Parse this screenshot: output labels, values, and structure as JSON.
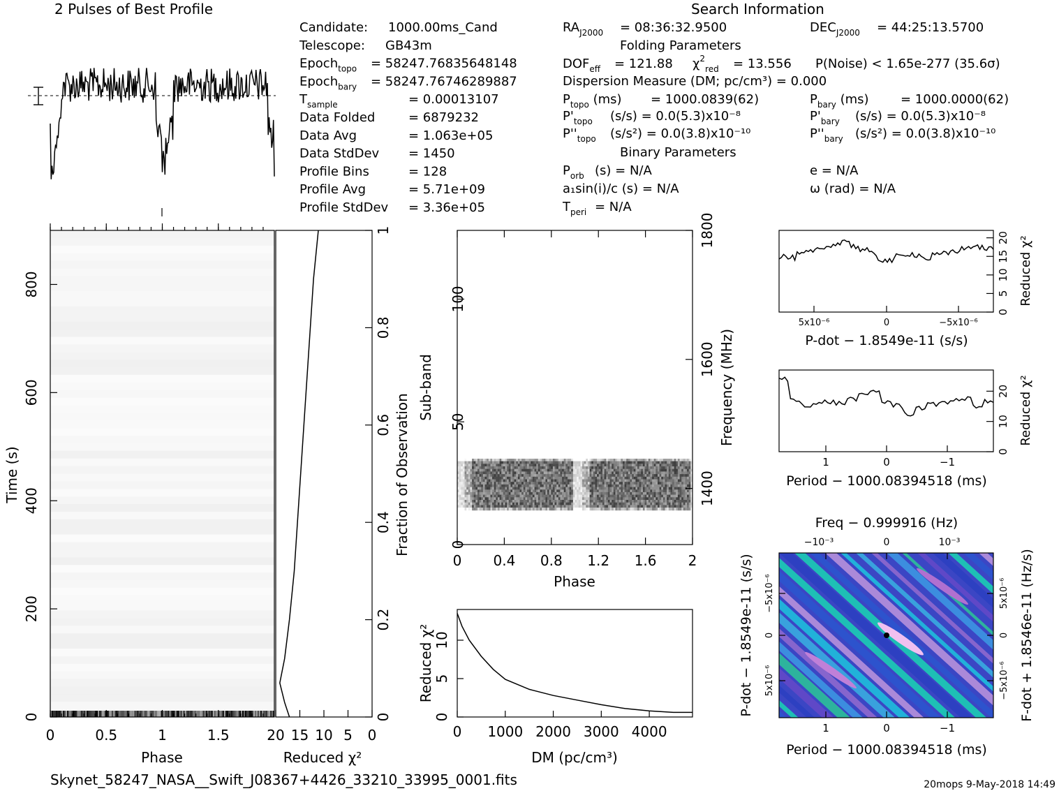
{
  "header": {
    "profile_title": "2 Pulses of Best Profile",
    "search_title": "Search Information"
  },
  "info_left": [
    {
      "label": "Candidate:",
      "value": "1000.00ms_Cand"
    },
    {
      "label": "Telescope:",
      "value": "GB43m"
    },
    {
      "label": "Epoch",
      "sub": "topo",
      "value": "= 58247.76835648148"
    },
    {
      "label": "Epoch",
      "sub": "bary",
      "value": "= 58247.76746289887"
    },
    {
      "label": "T",
      "sub": "sample",
      "value": "= 0.00013107"
    },
    {
      "label": "Data Folded",
      "value": "= 6879232"
    },
    {
      "label": "Data Avg",
      "value": "= 1.063e+05"
    },
    {
      "label": "Data StdDev",
      "value": "= 1450"
    },
    {
      "label": "Profile Bins",
      "value": "= 128"
    },
    {
      "label": "Profile Avg",
      "value": "= 5.71e+09"
    },
    {
      "label": "Profile StdDev",
      "value": "= 3.36e+05"
    }
  ],
  "info_mid": {
    "ra": "= 08:36:32.9500",
    "dec": "= 44:25:13.5700",
    "folding_title": "Folding Parameters",
    "dof": "= 121.88",
    "chi_red": "= 13.556",
    "pnoise": "P(Noise) < 1.65e-277 (35.6σ)",
    "dm_line": "Dispersion Measure (DM; pc/cm³) = 0.000",
    "ptopo": "= 1000.0839(62)",
    "pbary": "= 1000.0000(62)",
    "pdot_topo": "(s/s) = 0.0(5.3)x10⁻⁸",
    "pdot_bary": "(s/s) = 0.0(5.3)x10⁻⁸",
    "pddot_topo": "(s/s²) = 0.0(3.8)x10⁻¹⁰",
    "pddot_bary": "(s/s²) = 0.0(3.8)x10⁻¹⁰",
    "binary_title": "Binary Parameters",
    "porb": "(s) = N/A",
    "a1sini": "a₁sin(i)/c (s) = N/A",
    "tperi": "= N/A",
    "ecc": "e = N/A",
    "omega": "ω (rad) = N/A"
  },
  "footer": {
    "filename": "Skynet_58247_NASA__Swift_J08367+4426_33210_33995_0001.fits",
    "stamp": "20mops   9-May-2018 14:49"
  },
  "chart_data": [
    {
      "type": "line",
      "name": "profile",
      "title": "2 Pulses of Best Profile",
      "xlim": [
        0,
        2
      ],
      "description_values": "pulse profile with dips near phase 0.1 and 1.1"
    },
    {
      "type": "heatmap",
      "name": "time-phase",
      "xlabel": "Phase",
      "ylabel": "Time (s)",
      "xlim": [
        0,
        2
      ],
      "ylim": [
        0,
        900
      ],
      "x_ticks": [
        "0",
        "0.5",
        "1",
        "1.5"
      ],
      "y_ticks": [
        "0",
        "200",
        "400",
        "600",
        "800"
      ],
      "right_ylabel": "Fraction of Observation",
      "right_ticks": [
        "0",
        "0.2",
        "0.4",
        "0.6",
        "0.8",
        "1"
      ]
    },
    {
      "type": "line",
      "name": "time-chi2",
      "xlabel": "Reduced χ²",
      "x_ticks": [
        "20",
        "15",
        "10",
        "5",
        "0"
      ],
      "xlim": [
        20,
        0
      ],
      "x": [
        16,
        17,
        18,
        17,
        16,
        15,
        14,
        13,
        12,
        11,
        10
      ],
      "y": [
        0.0,
        0.03,
        0.07,
        0.12,
        0.2,
        0.3,
        0.45,
        0.6,
        0.75,
        0.9,
        1.0
      ]
    },
    {
      "type": "heatmap",
      "name": "subband-phase",
      "xlabel": "Phase",
      "ylabel": "Sub-band",
      "right_ylabel": "Frequency (MHz)",
      "xlim": [
        0,
        2
      ],
      "ylim": [
        0,
        128
      ],
      "x_ticks": [
        "0",
        "0.4",
        "0.8",
        "1.2",
        "1.6",
        "2"
      ],
      "y_ticks": [
        "0",
        "50",
        "100"
      ],
      "right_ticks": [
        "1400",
        "1600",
        "1800"
      ],
      "band_range": [
        14,
        35
      ]
    },
    {
      "type": "line",
      "name": "dm-chi2",
      "xlabel": "DM (pc/cm³)",
      "ylabel": "Reduced χ²",
      "xlim": [
        0,
        4900
      ],
      "ylim": [
        0,
        13
      ],
      "x_ticks": [
        "0",
        "1000",
        "2000",
        "3000",
        "4000"
      ],
      "y_ticks": [
        "0",
        "5",
        "10"
      ],
      "x": [
        0,
        100,
        250,
        500,
        750,
        1000,
        1500,
        2000,
        2500,
        3000,
        3500,
        4000,
        4500,
        4900
      ],
      "y": [
        13.5,
        11.8,
        10.0,
        7.9,
        6.2,
        4.9,
        3.6,
        2.8,
        2.2,
        1.6,
        1.1,
        0.8,
        0.6,
        0.6
      ]
    },
    {
      "type": "line",
      "name": "pdot-chi2",
      "xlabel": "P-dot − 1.8549e-11 (s/s)",
      "ylabel": "Reduced χ²",
      "ylim": [
        0,
        20
      ],
      "y_ticks": [
        "0",
        "5",
        "10",
        "15",
        "20"
      ],
      "x_ticks": [
        "5x10⁻⁶",
        "0",
        "−5x10⁻⁶"
      ],
      "y": [
        15,
        14.6,
        15.5,
        16.1,
        16.6,
        17.5,
        18.6,
        19.2,
        17.7,
        16.6,
        15.7,
        14.1,
        13.8,
        15.1,
        15.7,
        15.4,
        14.4,
        15.3,
        15.7,
        16.4,
        17,
        17.7,
        17.4,
        17
      ]
    },
    {
      "type": "line",
      "name": "period-chi2",
      "xlabel": "Period − 1000.08394518 (ms)",
      "ylabel": "Reduced χ²",
      "ylim": [
        0,
        25
      ],
      "y_ticks": [
        "0",
        "10",
        "20"
      ],
      "x_ticks": [
        "1",
        "0",
        "−1"
      ],
      "y": [
        24,
        17,
        15.5,
        15.8,
        16.5,
        16,
        17.5,
        18.5,
        20,
        16.5,
        15.2,
        12.5,
        14.5,
        15.5,
        16.5,
        16.8,
        17.5,
        15.2,
        16.5
      ]
    },
    {
      "type": "heatmap",
      "name": "pdot-period",
      "xlabel": "Period − 1000.08394518 (ms)",
      "ylabel": "P-dot − 1.8549e-11 (s/s)",
      "top_label": "Freq − 0.999916 (Hz)",
      "right_label": "F-dot + 1.8546e-11 (Hz/s)",
      "x_ticks": [
        "1",
        "0",
        "−1"
      ],
      "top_ticks": [
        "−10⁻³",
        "0",
        "10⁻³"
      ],
      "y_ticks": [
        "−5x10⁻⁶",
        "0",
        "5x10⁻⁶"
      ],
      "right_ticks": [
        "5x10⁻⁶",
        "0",
        "−5x10⁻⁶"
      ]
    }
  ]
}
